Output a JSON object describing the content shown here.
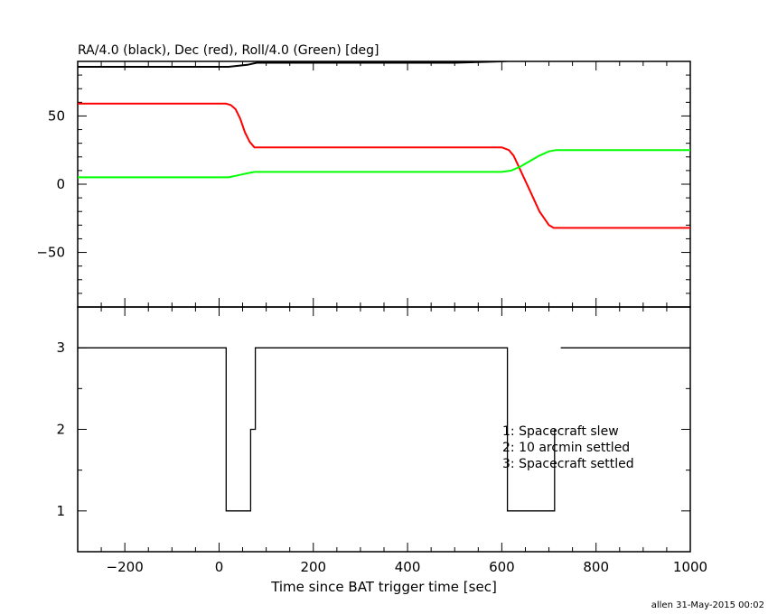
{
  "chart_data": [
    {
      "type": "line",
      "title": "RA/4.0 (black), Dec (red), Roll/4.0 (Green) [deg]",
      "xlim": [
        -300,
        1000
      ],
      "ylim": [
        -90,
        90
      ],
      "yticks": [
        -50,
        0,
        50
      ],
      "grid": false,
      "series": [
        {
          "color": "#000000",
          "x": [
            -300,
            0,
            20,
            60,
            80,
            150,
            300,
            360,
            500,
            600,
            640,
            700,
            720,
            800,
            1000
          ],
          "y": [
            86,
            86,
            86,
            87.5,
            89,
            89,
            89,
            89,
            89,
            90,
            91,
            92.5,
            93,
            93,
            93
          ]
        },
        {
          "color": "#ff0000",
          "x": [
            -300,
            0,
            15,
            25,
            35,
            45,
            55,
            65,
            75,
            100,
            300,
            360,
            500,
            600,
            615,
            625,
            640,
            660,
            680,
            700,
            710,
            720,
            760,
            1000
          ],
          "y": [
            59,
            59,
            59,
            58,
            55,
            48,
            38,
            31,
            27,
            27,
            27,
            27,
            27,
            27,
            25,
            21,
            10,
            -5,
            -20,
            -30,
            -32,
            -32,
            -32,
            -32
          ]
        },
        {
          "color": "#00ff00",
          "x": [
            -300,
            0,
            20,
            40,
            60,
            75,
            100,
            300,
            360,
            500,
            600,
            620,
            640,
            660,
            680,
            700,
            715,
            730,
            800,
            1000
          ],
          "y": [
            5,
            5,
            5,
            6.5,
            8,
            9,
            9,
            9,
            9,
            9,
            9,
            10,
            13,
            17,
            21,
            24,
            25,
            25,
            25,
            25
          ]
        }
      ]
    },
    {
      "type": "line",
      "xlabel": "Time since BAT trigger time [sec]",
      "xlim": [
        -300,
        1000
      ],
      "ylim": [
        0.5,
        3.5
      ],
      "xticks": [
        -200,
        0,
        200,
        400,
        600,
        800,
        1000
      ],
      "yticks": [
        1,
        2,
        3
      ],
      "grid": false,
      "series": [
        {
          "color": "#000000",
          "step": true,
          "x": [
            -300,
            15,
            15,
            67,
            67,
            77,
            77,
            1000
          ],
          "y": [
            3,
            3,
            1,
            1,
            2,
            2,
            3,
            3
          ],
          "segments": [
            [
              [
                -300,
                3
              ],
              [
                15,
                3
              ],
              [
                15,
                1
              ],
              [
                67,
                1
              ],
              [
                67,
                2
              ],
              [
                77,
                2
              ],
              [
                77,
                3
              ],
              [
                612,
                3
              ],
              [
                612,
                1
              ],
              [
                712,
                1
              ],
              [
                712,
                2
              ]
            ],
            [
              [
                725,
                3
              ],
              [
                1000,
                3
              ]
            ]
          ]
        }
      ],
      "annotations": [
        "1: Spacecraft slew",
        "2: 10 arcmin settled",
        "3: Spacecraft settled"
      ]
    }
  ],
  "footer": "allen 31-May-2015 00:02"
}
